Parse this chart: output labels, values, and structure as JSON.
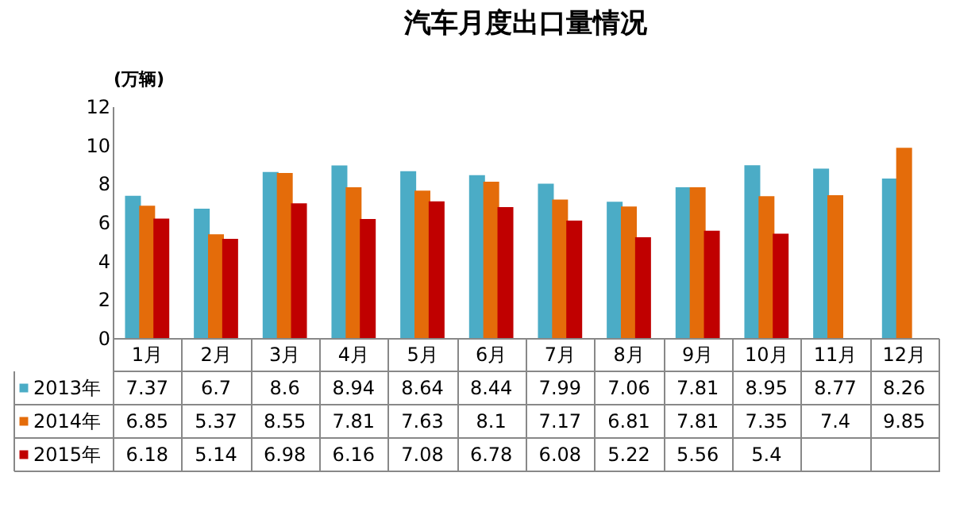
{
  "chart_data": {
    "type": "bar",
    "title": "汽车月度出口量情况",
    "ylabel": "(万辆)",
    "categories": [
      "1月",
      "2月",
      "3月",
      "4月",
      "5月",
      "6月",
      "7月",
      "8月",
      "9月",
      "10月",
      "11月",
      "12月"
    ],
    "series": [
      {
        "name": "2013年",
        "color": "#4bacc6",
        "values": [
          7.37,
          6.7,
          8.6,
          8.94,
          8.64,
          8.44,
          7.99,
          7.06,
          7.81,
          8.95,
          8.77,
          8.26
        ]
      },
      {
        "name": "2014年",
        "color": "#e46c0a",
        "values": [
          6.85,
          5.37,
          8.55,
          7.81,
          7.63,
          8.1,
          7.17,
          6.81,
          7.81,
          7.35,
          7.4,
          9.85
        ]
      },
      {
        "name": "2015年",
        "color": "#c00000",
        "values": [
          6.18,
          5.14,
          6.98,
          6.16,
          7.08,
          6.78,
          6.08,
          5.22,
          5.56,
          5.4,
          null,
          null
        ]
      }
    ],
    "ylim": [
      0,
      12
    ],
    "yticks": [
      0,
      2,
      4,
      6,
      8,
      10,
      12
    ],
    "grid": false,
    "legend": "bottom",
    "data_labels": true
  }
}
